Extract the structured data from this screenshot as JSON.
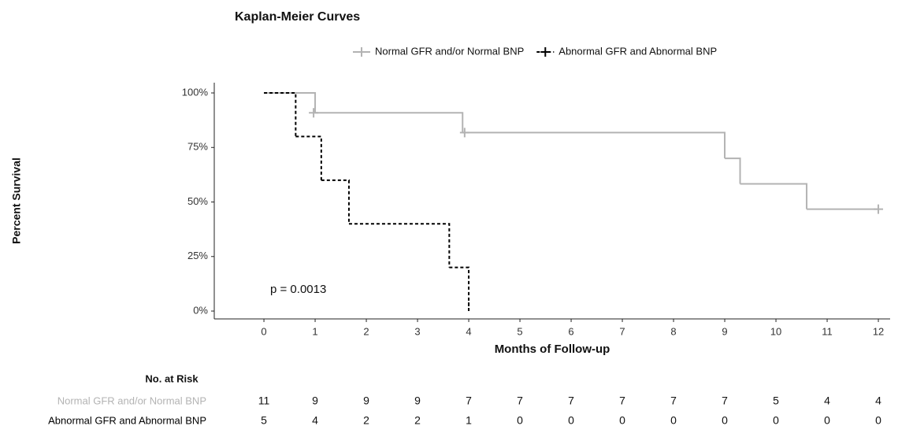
{
  "chart_data": {
    "type": "km",
    "title": "Kaplan-Meier Curves",
    "x_label": "Months of Follow-up",
    "y_label": "Percent Survival",
    "annotation": "p = 0.0013",
    "xlim": [
      -0.97,
      12.23
    ],
    "ylim": [
      -3.6,
      104.7
    ],
    "xticks": [
      0,
      1,
      2,
      3,
      4,
      5,
      6,
      7,
      8,
      9,
      10,
      11,
      12
    ],
    "yticks": [
      {
        "value": 0,
        "label": "0%"
      },
      {
        "value": 25,
        "label": "25%"
      },
      {
        "value": 50,
        "label": "50%"
      },
      {
        "value": 75,
        "label": "75%"
      },
      {
        "value": 100,
        "label": "100%"
      }
    ],
    "series": [
      {
        "name": "Normal GFR and/or Normal BNP",
        "color": "#b3b3b3",
        "dashed": false,
        "x": [
          0,
          1.0,
          3.88,
          9.0,
          9.3,
          10.6
        ],
        "values": [
          100,
          90.9,
          81.8,
          70,
          58.3,
          46.7
        ],
        "censor_x": [
          0.97,
          3.92,
          12.0
        ],
        "censor_values": [
          90.9,
          81.8,
          46.7
        ]
      },
      {
        "name": "Abnormal GFR and Abnormal BNP",
        "color": "#000000",
        "dashed": true,
        "x": [
          0,
          0.62,
          1.12,
          1.66,
          3.62,
          4.0
        ],
        "values": [
          100,
          80,
          60,
          40,
          20,
          0
        ],
        "censor_x": [],
        "censor_values": []
      }
    ],
    "risk_table": {
      "title": "No. at Risk",
      "rows": [
        [
          11,
          9,
          9,
          9,
          7,
          7,
          7,
          7,
          7,
          7,
          5,
          4,
          4
        ],
        [
          5,
          4,
          2,
          2,
          1,
          0,
          0,
          0,
          0,
          0,
          0,
          0,
          0
        ]
      ]
    }
  }
}
